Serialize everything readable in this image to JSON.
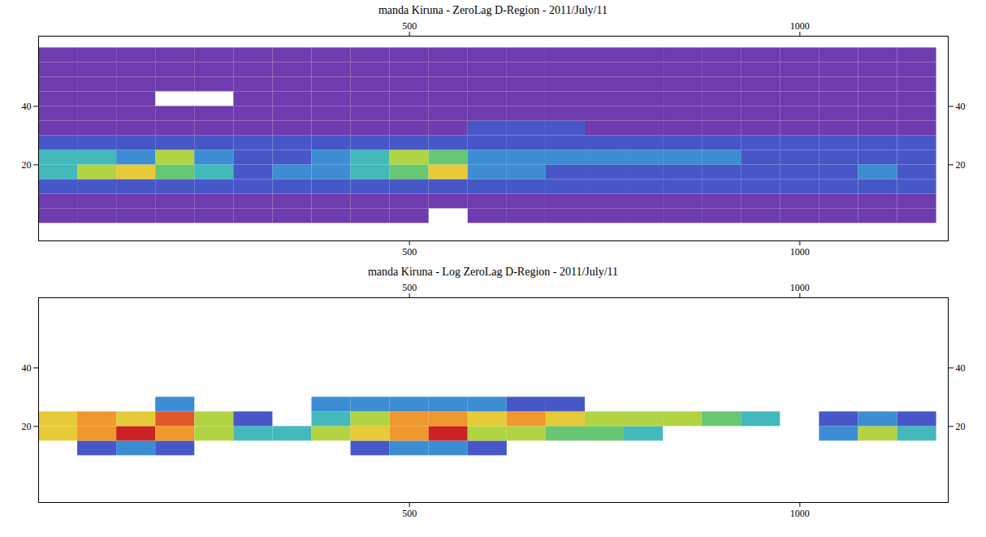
{
  "chart_data": [
    {
      "type": "heatmap",
      "title": "manda Kiruna - ZeroLag D-Region - 2011/July/11",
      "x": [
        50,
        100,
        150,
        200,
        250,
        300,
        350,
        400,
        450,
        500,
        550,
        600,
        650,
        700,
        750,
        800,
        850,
        900,
        950,
        1000,
        1050,
        1100,
        1150
      ],
      "y": [
        2.5,
        7.5,
        12.5,
        17.5,
        22.5,
        27.5,
        32.5,
        37.5,
        42.5,
        47.5,
        52.5,
        57.5
      ],
      "z": [
        [
          1,
          1,
          1,
          1,
          1,
          1,
          1,
          1,
          1,
          1,
          null,
          1,
          1,
          1,
          1,
          1,
          1,
          1,
          1,
          1,
          1,
          1,
          1
        ],
        [
          1,
          1,
          1,
          1,
          1,
          1,
          1,
          1,
          1,
          1,
          1,
          1,
          1,
          1,
          1,
          1,
          1,
          1,
          1,
          1,
          1,
          1,
          1
        ],
        [
          2,
          2,
          2,
          2,
          2,
          2,
          2,
          2,
          2,
          2,
          2,
          2,
          2,
          2,
          2,
          2,
          2,
          2,
          2,
          2,
          2,
          2,
          2
        ],
        [
          4,
          6,
          7,
          5,
          4,
          2,
          3,
          3,
          4,
          5,
          7,
          3,
          3,
          2,
          2,
          2,
          2,
          2,
          2,
          2,
          2,
          3,
          2
        ],
        [
          4,
          4,
          3,
          6,
          3,
          2,
          2,
          3,
          4,
          6,
          5,
          3,
          3,
          3,
          3,
          3,
          3,
          3,
          2,
          2,
          2,
          2,
          2
        ],
        [
          2,
          2,
          2,
          2,
          2,
          2,
          2,
          2,
          2,
          2,
          2,
          2,
          2,
          2,
          2,
          2,
          2,
          2,
          2,
          2,
          2,
          2,
          2
        ],
        [
          1,
          1,
          1,
          1,
          1,
          1,
          1,
          1,
          1,
          1,
          1,
          2,
          2,
          2,
          1,
          1,
          1,
          1,
          1,
          1,
          1,
          1,
          1
        ],
        [
          1,
          1,
          1,
          1,
          1,
          1,
          1,
          1,
          1,
          1,
          1,
          1,
          1,
          1,
          1,
          1,
          1,
          1,
          1,
          1,
          1,
          1,
          1
        ],
        [
          1,
          1,
          1,
          null,
          null,
          1,
          1,
          1,
          1,
          1,
          1,
          1,
          1,
          1,
          1,
          1,
          1,
          1,
          1,
          1,
          1,
          1,
          1
        ],
        [
          1,
          1,
          1,
          1,
          1,
          1,
          1,
          1,
          1,
          1,
          1,
          1,
          1,
          1,
          1,
          1,
          1,
          1,
          1,
          1,
          1,
          1,
          1
        ],
        [
          1,
          1,
          1,
          1,
          1,
          1,
          1,
          1,
          1,
          1,
          1,
          1,
          1,
          1,
          1,
          1,
          1,
          1,
          1,
          1,
          1,
          1,
          1
        ],
        [
          1,
          1,
          1,
          1,
          1,
          1,
          1,
          1,
          1,
          1,
          1,
          1,
          1,
          1,
          1,
          1,
          1,
          1,
          1,
          1,
          1,
          1,
          1
        ]
      ],
      "zlim": [
        0,
        10
      ],
      "xlim": [
        25,
        1190
      ],
      "xticks": [
        500,
        1000
      ],
      "ylim": [
        -6,
        64
      ],
      "yticks": [
        20,
        40
      ]
    },
    {
      "type": "heatmap",
      "title": "manda Kiruna - Log ZeroLag D-Region - 2011/July/11",
      "x": [
        50,
        100,
        150,
        200,
        250,
        300,
        350,
        400,
        450,
        500,
        550,
        600,
        650,
        700,
        750,
        800,
        850,
        900,
        950,
        1000,
        1050,
        1100,
        1150
      ],
      "y": [
        2.5,
        7.5,
        12.5,
        17.5,
        22.5,
        27.5,
        32.5,
        37.5,
        42.5,
        47.5,
        52.5,
        57.5
      ],
      "z": [
        [
          null,
          null,
          null,
          null,
          null,
          null,
          null,
          null,
          null,
          null,
          null,
          null,
          null,
          null,
          null,
          null,
          null,
          null,
          null,
          null,
          null,
          null,
          null
        ],
        [
          null,
          null,
          null,
          null,
          null,
          null,
          null,
          null,
          null,
          null,
          null,
          null,
          null,
          null,
          null,
          null,
          null,
          null,
          null,
          null,
          null,
          null,
          null
        ],
        [
          null,
          2,
          3,
          2,
          null,
          null,
          null,
          null,
          2,
          3,
          3,
          2,
          null,
          null,
          null,
          null,
          null,
          null,
          null,
          null,
          null,
          null,
          null
        ],
        [
          7,
          8,
          10,
          8,
          6,
          4,
          4,
          6,
          7,
          8,
          10,
          6,
          6,
          5,
          5,
          4,
          null,
          null,
          null,
          null,
          3,
          6,
          4
        ],
        [
          7,
          8,
          7,
          9,
          6,
          2,
          null,
          4,
          6,
          8,
          8,
          7,
          8,
          7,
          6,
          6,
          6,
          5,
          4,
          null,
          2,
          3,
          2
        ],
        [
          null,
          null,
          null,
          3,
          null,
          null,
          null,
          3,
          3,
          3,
          3,
          3,
          2,
          2,
          null,
          null,
          null,
          null,
          null,
          null,
          null,
          null,
          null
        ],
        [
          null,
          null,
          null,
          null,
          null,
          null,
          null,
          null,
          null,
          null,
          null,
          null,
          null,
          null,
          null,
          null,
          null,
          null,
          null,
          null,
          null,
          null,
          null
        ],
        [
          null,
          null,
          null,
          null,
          null,
          null,
          null,
          null,
          null,
          null,
          null,
          null,
          null,
          null,
          null,
          null,
          null,
          null,
          null,
          null,
          null,
          null,
          null
        ],
        [
          null,
          null,
          null,
          null,
          null,
          null,
          null,
          null,
          null,
          null,
          null,
          null,
          null,
          null,
          null,
          null,
          null,
          null,
          null,
          null,
          null,
          null,
          null
        ],
        [
          null,
          null,
          null,
          null,
          null,
          null,
          null,
          null,
          null,
          null,
          null,
          null,
          null,
          null,
          null,
          null,
          null,
          null,
          null,
          null,
          null,
          null,
          null
        ],
        [
          null,
          null,
          null,
          null,
          null,
          null,
          null,
          null,
          null,
          null,
          null,
          null,
          null,
          null,
          null,
          null,
          null,
          null,
          null,
          null,
          null,
          null,
          null
        ],
        [
          null,
          null,
          null,
          null,
          null,
          null,
          null,
          null,
          null,
          null,
          null,
          null,
          null,
          null,
          null,
          null,
          null,
          null,
          null,
          null,
          null,
          null,
          null
        ]
      ],
      "zlim": [
        0,
        10
      ],
      "xlim": [
        25,
        1190
      ],
      "xticks": [
        500,
        1000
      ],
      "ylim": [
        -6,
        64
      ],
      "yticks": [
        20,
        40
      ]
    }
  ]
}
